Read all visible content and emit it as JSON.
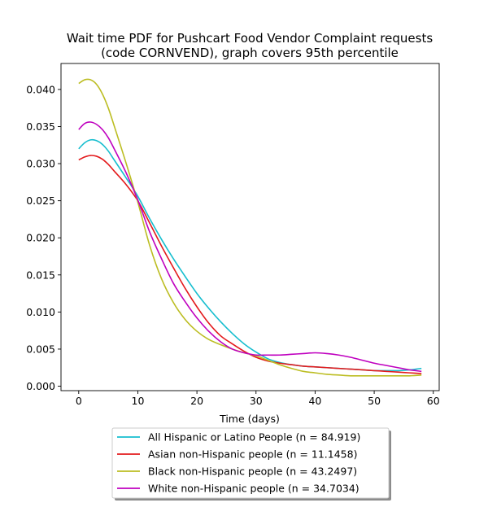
{
  "chart_data": {
    "type": "line",
    "title_line1": "Wait time PDF for Pushcart Food Vendor Complaint  requests",
    "title_line2": "(code CORNVEND), graph covers 95th percentile",
    "xlabel": "Time (days)",
    "ylabel": "",
    "xlim": [
      -3,
      61
    ],
    "ylim": [
      -0.0006,
      0.0435
    ],
    "xticks": [
      0,
      10,
      20,
      30,
      40,
      50,
      60
    ],
    "yticks": [
      0.0,
      0.005,
      0.01,
      0.015,
      0.02,
      0.025,
      0.03,
      0.035,
      0.04
    ],
    "ytick_labels": [
      "0.000",
      "0.005",
      "0.010",
      "0.015",
      "0.020",
      "0.025",
      "0.030",
      "0.035",
      "0.040"
    ],
    "grid": false,
    "legend_position": "bottom-center",
    "series": [
      {
        "name": "All Hispanic or Latino People (n = 84.919)",
        "color": "#17becf",
        "x": [
          0,
          1,
          2,
          3,
          4,
          5,
          6,
          8,
          10,
          12,
          14,
          16,
          18,
          20,
          22,
          24,
          26,
          28,
          30,
          32,
          34,
          36,
          38,
          40,
          42,
          44,
          46,
          48,
          50,
          52,
          54,
          56,
          58
        ],
        "y": [
          0.032,
          0.0328,
          0.0332,
          0.0331,
          0.0326,
          0.0317,
          0.0305,
          0.0281,
          0.0256,
          0.0226,
          0.0198,
          0.0172,
          0.0148,
          0.0125,
          0.0105,
          0.0087,
          0.0071,
          0.0057,
          0.0046,
          0.0037,
          0.0032,
          0.0029,
          0.0027,
          0.0026,
          0.0025,
          0.0024,
          0.0023,
          0.0022,
          0.0021,
          0.0021,
          0.0021,
          0.0022,
          0.0024
        ]
      },
      {
        "name": "Asian non-Hispanic people (n = 11.1458)",
        "color": "#e31a1c",
        "x": [
          0,
          1,
          2,
          3,
          4,
          5,
          6,
          8,
          10,
          12,
          14,
          16,
          18,
          20,
          22,
          24,
          26,
          28,
          30,
          32,
          34,
          36,
          38,
          40,
          42,
          44,
          46,
          48,
          50,
          52,
          54,
          56,
          58
        ],
        "y": [
          0.0305,
          0.0309,
          0.0311,
          0.031,
          0.0306,
          0.0299,
          0.029,
          0.0272,
          0.025,
          0.022,
          0.0189,
          0.016,
          0.0132,
          0.0107,
          0.0085,
          0.0068,
          0.0057,
          0.0047,
          0.0039,
          0.0034,
          0.0031,
          0.0029,
          0.0027,
          0.0026,
          0.0025,
          0.0024,
          0.0023,
          0.0022,
          0.0021,
          0.002,
          0.0019,
          0.0018,
          0.0017
        ]
      },
      {
        "name": "Black non-Hispanic people (n = 43.2497)",
        "color": "#bcbd22",
        "x": [
          0,
          1,
          2,
          3,
          4,
          5,
          6,
          8,
          10,
          12,
          14,
          16,
          18,
          20,
          22,
          24,
          26,
          28,
          30,
          32,
          34,
          36,
          38,
          40,
          42,
          44,
          46,
          48,
          50,
          52,
          54,
          56,
          58
        ],
        "y": [
          0.0408,
          0.0413,
          0.0413,
          0.0407,
          0.0394,
          0.0375,
          0.0351,
          0.0301,
          0.0248,
          0.019,
          0.0145,
          0.0113,
          0.009,
          0.0074,
          0.0063,
          0.0056,
          0.005,
          0.0045,
          0.0041,
          0.0035,
          0.0029,
          0.0024,
          0.002,
          0.0018,
          0.0016,
          0.0015,
          0.0014,
          0.0014,
          0.0014,
          0.0014,
          0.0014,
          0.0014,
          0.0015
        ]
      },
      {
        "name": "White non-Hispanic people (n = 34.7034)",
        "color": "#bf00bf",
        "x": [
          0,
          1,
          2,
          3,
          4,
          5,
          6,
          8,
          10,
          12,
          14,
          16,
          18,
          20,
          22,
          24,
          26,
          28,
          30,
          32,
          34,
          36,
          38,
          40,
          42,
          44,
          46,
          48,
          50,
          52,
          54,
          56,
          58
        ],
        "y": [
          0.0346,
          0.0354,
          0.0356,
          0.0353,
          0.0346,
          0.0335,
          0.032,
          0.0288,
          0.0251,
          0.0208,
          0.0172,
          0.0139,
          0.0114,
          0.0092,
          0.0074,
          0.006,
          0.005,
          0.0045,
          0.0042,
          0.0042,
          0.0042,
          0.0043,
          0.0044,
          0.0045,
          0.0044,
          0.0042,
          0.0039,
          0.0035,
          0.0031,
          0.0028,
          0.0025,
          0.0022,
          0.002
        ]
      }
    ]
  }
}
